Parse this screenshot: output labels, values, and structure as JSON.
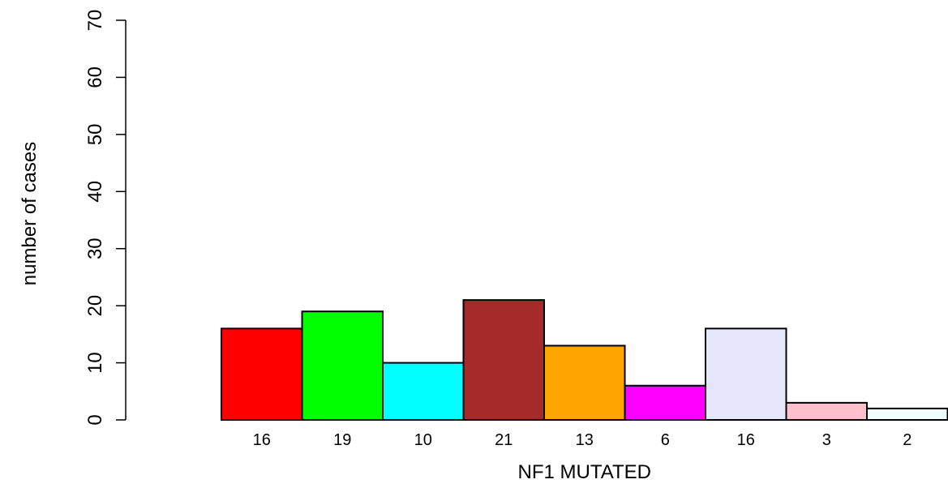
{
  "chart_data": {
    "type": "bar",
    "categories": [
      "16",
      "19",
      "10",
      "21",
      "13",
      "6",
      "16",
      "3",
      "2"
    ],
    "values": [
      16,
      19,
      10,
      21,
      13,
      6,
      16,
      3,
      2
    ],
    "colors": [
      "#ff0000",
      "#00ff00",
      "#00ffff",
      "#a52a2a",
      "#ffa500",
      "#ff00ff",
      "#e6e6fa",
      "#ffc0cb",
      "#f0ffff"
    ],
    "title": "",
    "xlabel": "NF1 MUTATED",
    "ylabel": "number of cases",
    "ylim": [
      0,
      70
    ],
    "yticks": [
      "0",
      "10",
      "20",
      "30",
      "40",
      "50",
      "60",
      "70"
    ],
    "grid": false,
    "legend": "none"
  }
}
